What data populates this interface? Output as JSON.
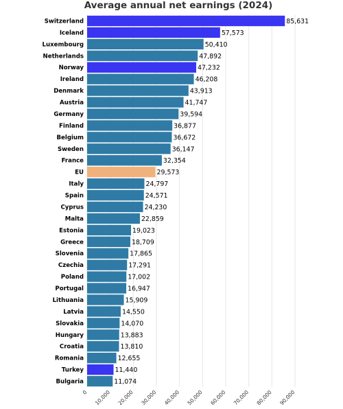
{
  "chart_data": {
    "type": "bar",
    "orientation": "horizontal",
    "title": "Average annual net earnings (2024)",
    "xlabel": "",
    "ylabel": "",
    "xlim": [
      0,
      90000
    ],
    "ticks": [
      0,
      10000,
      20000,
      30000,
      40000,
      50000,
      60000,
      70000,
      80000,
      90000
    ],
    "tick_labels": [
      "0",
      "10,000",
      "20,000",
      "30,000",
      "40,000",
      "50,000",
      "60,000",
      "70,000",
      "80,000",
      "90,000"
    ],
    "grid": true,
    "legend": "none",
    "colors": {
      "eu_member": "#2f7ba6",
      "non_eu": "#3a35f0",
      "eu_average": "#f0b27a"
    },
    "categories": [
      "Switzerland",
      "Iceland",
      "Luxembourg",
      "Netherlands",
      "Norway",
      "Ireland",
      "Denmark",
      "Austria",
      "Germany",
      "Finland",
      "Belgium",
      "Sweden",
      "France",
      "EU",
      "Italy",
      "Spain",
      "Cyprus",
      "Malta",
      "Estonia",
      "Greece",
      "Slovenia",
      "Czechia",
      "Poland",
      "Portugal",
      "Lithuania",
      "Latvia",
      "Slovakia",
      "Hungary",
      "Croatia",
      "Romania",
      "Turkey",
      "Bulgaria"
    ],
    "values": [
      85631,
      57573,
      50410,
      47892,
      47232,
      46208,
      43913,
      41747,
      39594,
      36877,
      36672,
      36147,
      32354,
      29573,
      24797,
      24571,
      24230,
      22859,
      19023,
      18709,
      17865,
      17291,
      17002,
      16947,
      15909,
      14550,
      14070,
      13883,
      13810,
      12655,
      11440,
      11074
    ],
    "value_labels": [
      "85,631",
      "57,573",
      "50,410",
      "47,892",
      "47,232",
      "46,208",
      "43,913",
      "41,747",
      "39,594",
      "36,877",
      "36,672",
      "36,147",
      "32,354",
      "29,573",
      "24,797",
      "24,571",
      "24,230",
      "22,859",
      "19,023",
      "18,709",
      "17,865",
      "17,291",
      "17,002",
      "16,947",
      "15,909",
      "14,550",
      "14,070",
      "13,883",
      "13,810",
      "12,655",
      "11,440",
      "11,074"
    ],
    "bar_groups": [
      "non_eu",
      "non_eu",
      "eu_member",
      "eu_member",
      "non_eu",
      "eu_member",
      "eu_member",
      "eu_member",
      "eu_member",
      "eu_member",
      "eu_member",
      "eu_member",
      "eu_member",
      "eu_average",
      "eu_member",
      "eu_member",
      "eu_member",
      "eu_member",
      "eu_member",
      "eu_member",
      "eu_member",
      "eu_member",
      "eu_member",
      "eu_member",
      "eu_member",
      "eu_member",
      "eu_member",
      "eu_member",
      "eu_member",
      "eu_member",
      "non_eu",
      "eu_member"
    ]
  }
}
